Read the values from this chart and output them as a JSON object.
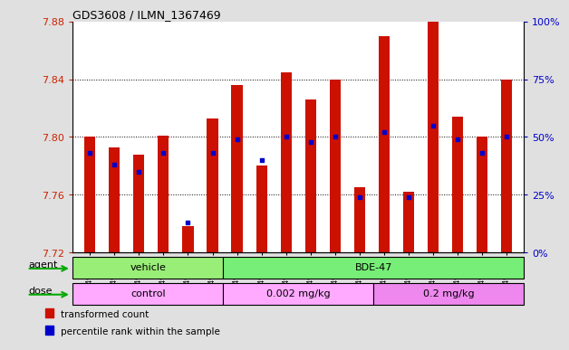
{
  "title": "GDS3608 / ILMN_1367469",
  "samples": [
    "GSM496404",
    "GSM496405",
    "GSM496406",
    "GSM496407",
    "GSM496408",
    "GSM496409",
    "GSM496410",
    "GSM496411",
    "GSM496412",
    "GSM496413",
    "GSM496414",
    "GSM496415",
    "GSM496416",
    "GSM496417",
    "GSM496418",
    "GSM496419",
    "GSM496420",
    "GSM496421"
  ],
  "bar_tops": [
    7.8,
    7.793,
    7.788,
    7.801,
    7.738,
    7.813,
    7.836,
    7.78,
    7.845,
    7.826,
    7.84,
    7.765,
    7.87,
    7.762,
    7.88,
    7.814,
    7.8,
    7.84
  ],
  "percentile_vals": [
    43,
    38,
    35,
    43,
    13,
    43,
    49,
    40,
    50,
    48,
    50,
    24,
    52,
    24,
    55,
    49,
    43,
    50
  ],
  "bar_base": 7.72,
  "ylim_left": [
    7.72,
    7.88
  ],
  "ylim_right": [
    0,
    100
  ],
  "yticks_left": [
    7.72,
    7.76,
    7.8,
    7.84,
    7.88
  ],
  "yticks_right": [
    0,
    25,
    50,
    75,
    100
  ],
  "bar_color": "#CC1100",
  "blue_color": "#0000CC",
  "agent_groups": [
    {
      "label": "vehicle",
      "start": 0,
      "end": 6,
      "color": "#99EE77"
    },
    {
      "label": "BDE-47",
      "start": 6,
      "end": 18,
      "color": "#77EE77"
    }
  ],
  "dose_groups": [
    {
      "label": "control",
      "start": 0,
      "end": 6,
      "color": "#FFAAFF"
    },
    {
      "label": "0.002 mg/kg",
      "start": 6,
      "end": 12,
      "color": "#FFAAFF"
    },
    {
      "label": "0.2 mg/kg",
      "start": 12,
      "end": 18,
      "color": "#EE88EE"
    }
  ],
  "legend_items": [
    {
      "label": "transformed count",
      "color": "#CC1100"
    },
    {
      "label": "percentile rank within the sample",
      "color": "#0000CC"
    }
  ],
  "arrow_color": "#00AA00",
  "axis_label_color_left": "#CC2200",
  "axis_label_color_right": "#0000CC",
  "grid_color": "#000000",
  "bg_color": "#E0E0E0",
  "plot_bg": "#FFFFFF"
}
